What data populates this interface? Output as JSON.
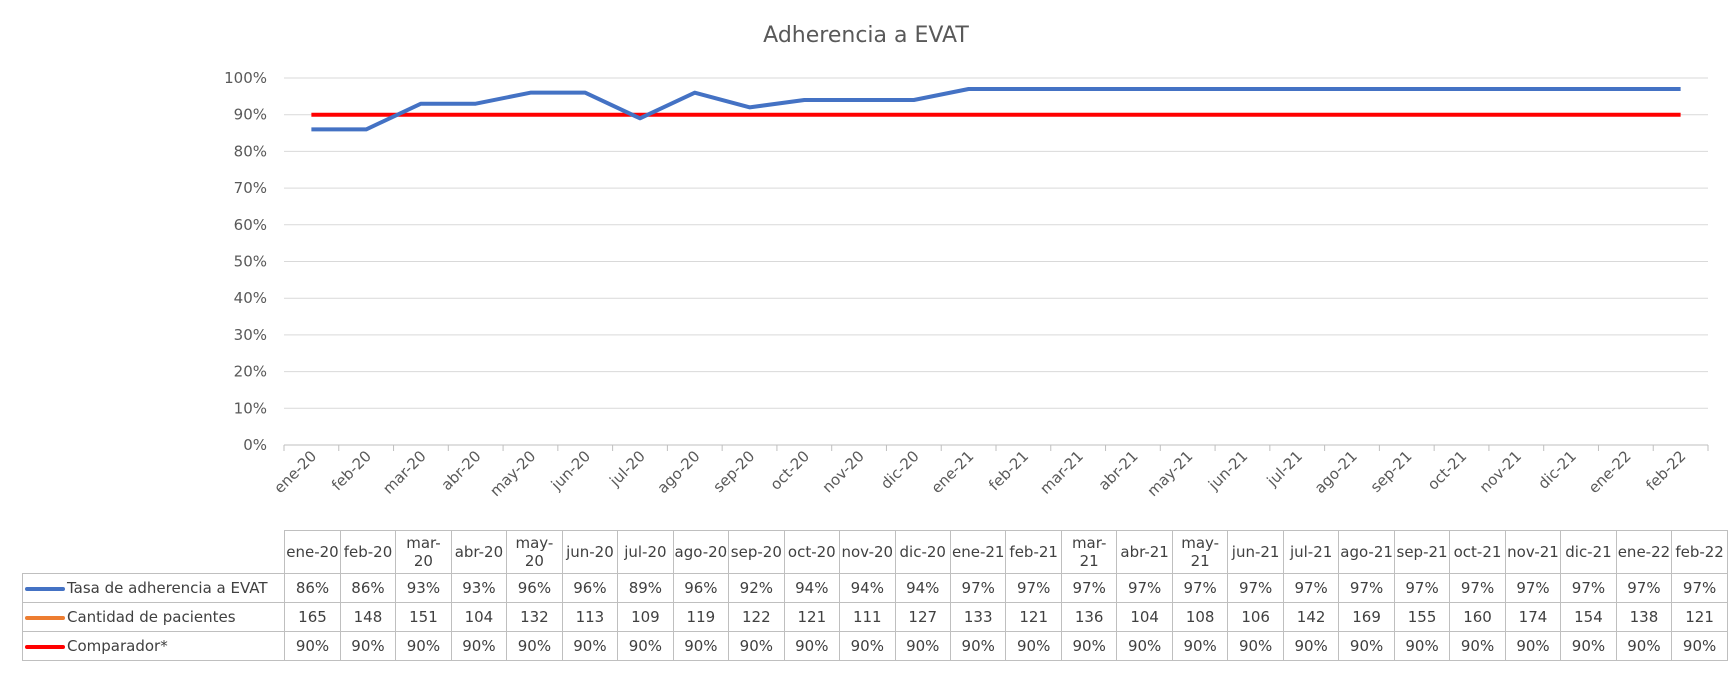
{
  "chart_data": {
    "type": "line",
    "title": "Adherencia a EVAT",
    "categories": [
      "ene-20",
      "feb-20",
      "mar-20",
      "abr-20",
      "may-20",
      "jun-20",
      "jul-20",
      "ago-20",
      "sep-20",
      "oct-20",
      "nov-20",
      "dic-20",
      "ene-21",
      "feb-21",
      "mar-21",
      "abr-21",
      "may-21",
      "jun-21",
      "jul-21",
      "ago-21",
      "sep-21",
      "oct-21",
      "nov-21",
      "dic-21",
      "ene-22",
      "feb-22"
    ],
    "table_headers": [
      "ene-20",
      "feb-20",
      "mar-\n20",
      "abr-20",
      "may-\n20",
      "jun-20",
      "jul-20",
      "ago-20",
      "sep-20",
      "oct-20",
      "nov-20",
      "dic-20",
      "ene-21",
      "feb-21",
      "mar-\n21",
      "abr-21",
      "may-\n21",
      "jun-21",
      "jul-21",
      "ago-21",
      "sep-21",
      "oct-21",
      "nov-21",
      "dic-21",
      "ene-22",
      "feb-22"
    ],
    "y_ticks": [
      "0%",
      "10%",
      "20%",
      "30%",
      "40%",
      "50%",
      "60%",
      "70%",
      "80%",
      "90%",
      "100%"
    ],
    "ylim": [
      0,
      100
    ],
    "grid": true,
    "legend_placement": "data-table",
    "series": [
      {
        "name": "Tasa de adherencia a EVAT",
        "color": "#4472c4",
        "plotted": true,
        "values": [
          86,
          86,
          93,
          93,
          96,
          96,
          89,
          96,
          92,
          94,
          94,
          94,
          97,
          97,
          97,
          97,
          97,
          97,
          97,
          97,
          97,
          97,
          97,
          97,
          97,
          97
        ],
        "labels": [
          "86%",
          "86%",
          "93%",
          "93%",
          "96%",
          "96%",
          "89%",
          "96%",
          "92%",
          "94%",
          "94%",
          "94%",
          "97%",
          "97%",
          "97%",
          "97%",
          "97%",
          "97%",
          "97%",
          "97%",
          "97%",
          "97%",
          "97%",
          "97%",
          "97%",
          "97%"
        ]
      },
      {
        "name": "Cantidad de pacientes",
        "color": "#ed7d31",
        "plotted": false,
        "values": [
          165,
          148,
          151,
          104,
          132,
          113,
          109,
          119,
          122,
          121,
          111,
          127,
          133,
          121,
          136,
          104,
          108,
          106,
          142,
          169,
          155,
          160,
          174,
          154,
          138,
          121
        ],
        "labels": [
          "165",
          "148",
          "151",
          "104",
          "132",
          "113",
          "109",
          "119",
          "122",
          "121",
          "111",
          "127",
          "133",
          "121",
          "136",
          "104",
          "108",
          "106",
          "142",
          "169",
          "155",
          "160",
          "174",
          "154",
          "138",
          "121"
        ]
      },
      {
        "name": "Comparador*",
        "color": "#ff0000",
        "plotted": true,
        "values": [
          90,
          90,
          90,
          90,
          90,
          90,
          90,
          90,
          90,
          90,
          90,
          90,
          90,
          90,
          90,
          90,
          90,
          90,
          90,
          90,
          90,
          90,
          90,
          90,
          90,
          90
        ],
        "labels": [
          "90%",
          "90%",
          "90%",
          "90%",
          "90%",
          "90%",
          "90%",
          "90%",
          "90%",
          "90%",
          "90%",
          "90%",
          "90%",
          "90%",
          "90%",
          "90%",
          "90%",
          "90%",
          "90%",
          "90%",
          "90%",
          "90%",
          "90%",
          "90%",
          "90%",
          "90%"
        ]
      }
    ]
  }
}
